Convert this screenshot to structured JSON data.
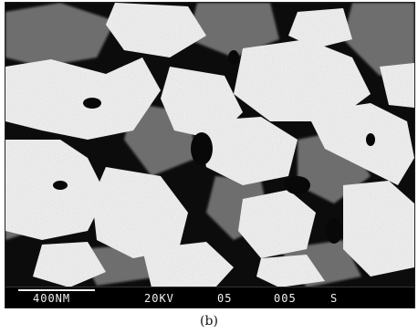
{
  "figure": {
    "caption": "(b)",
    "scale_bar": {
      "size": "400NM",
      "voltage": "20KV",
      "magnification": "05",
      "number": "005",
      "mode": "S"
    },
    "colors": {
      "background": "#0a0a0a",
      "particle": "#f4f4f4",
      "shadow": "#7a7a7a",
      "bar": "#000000",
      "bar_text": "#f2f2f2"
    }
  }
}
